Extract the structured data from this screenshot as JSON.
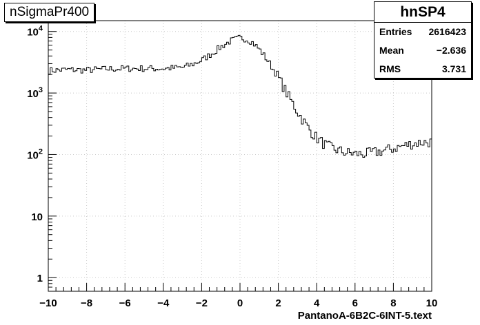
{
  "chart_data": {
    "type": "histogram",
    "title": "nSigmaPr400",
    "xlabel": "PantanoA-6B2C-6INT-5.text",
    "ylabel": "",
    "xlim": [
      -10,
      10
    ],
    "ylim": [
      0.6,
      15000
    ],
    "yscale": "log",
    "grid": true,
    "xticks": [
      -10,
      -8,
      -6,
      -4,
      -2,
      0,
      2,
      4,
      6,
      8,
      10
    ],
    "xtick_labels": [
      "−10",
      "−8",
      "−6",
      "−4",
      "−2",
      "0",
      "2",
      "4",
      "6",
      "8",
      "10"
    ],
    "yticks": [
      1,
      10,
      100,
      1000,
      10000
    ],
    "ytick_labels": [
      {
        "base": "1",
        "exp": ""
      },
      {
        "base": "10",
        "exp": ""
      },
      {
        "base": "10",
        "exp": "2"
      },
      {
        "base": "10",
        "exp": "3"
      },
      {
        "base": "10",
        "exp": "4"
      }
    ],
    "series": [
      {
        "x": [
          -10,
          -9,
          -8,
          -7,
          -6,
          -5,
          -4,
          -3,
          -2.5,
          -2,
          -1.5,
          -1,
          -0.5,
          0,
          0.3,
          0.6,
          1,
          1.5,
          2,
          2.5,
          3,
          3.5,
          4,
          4.5,
          5,
          5.5,
          6,
          6.5,
          7,
          7.5,
          8,
          8.5,
          9,
          9.5,
          10
        ],
        "y": [
          2300,
          2400,
          2350,
          2450,
          2500,
          2500,
          2500,
          2600,
          2900,
          3400,
          4300,
          5600,
          7000,
          7900,
          7600,
          6900,
          5200,
          3200,
          1800,
          920,
          500,
          285,
          185,
          140,
          120,
          108,
          103,
          102,
          108,
          115,
          125,
          138,
          150,
          158,
          160
        ]
      }
    ],
    "stats": {
      "name": "hnSP4",
      "entries_label": "Entries",
      "entries": "2616423",
      "mean_label": "Mean",
      "mean": "−2.636",
      "rms_label": "RMS",
      "rms": "3.731"
    }
  }
}
